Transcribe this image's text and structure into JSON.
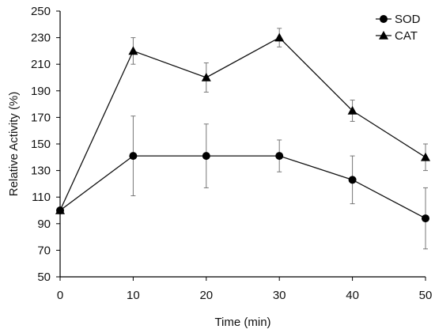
{
  "chart_data": {
    "type": "line",
    "x": [
      0,
      10,
      20,
      30,
      40,
      50
    ],
    "xlabel": "Time (min)",
    "ylabel": "Relative Activity (%)",
    "xlim": [
      0,
      50
    ],
    "ylim": [
      50,
      250
    ],
    "xticks": [
      0,
      10,
      20,
      30,
      40,
      50
    ],
    "yticks": [
      50,
      70,
      90,
      110,
      130,
      150,
      170,
      190,
      210,
      230,
      250
    ],
    "grid": false,
    "legend_position": "top-right",
    "series": [
      {
        "name": "SOD",
        "marker": "circle",
        "values": [
          100,
          141,
          141,
          141,
          123,
          94
        ],
        "errors": [
          0,
          30,
          24,
          12,
          18,
          23
        ]
      },
      {
        "name": "CAT",
        "marker": "triangle",
        "values": [
          100,
          220,
          200,
          230,
          175,
          140
        ],
        "errors": [
          0,
          10,
          11,
          7,
          8,
          10
        ]
      }
    ],
    "colors": {
      "line": "#111111",
      "error_bar": "#777777",
      "axis": "#000000"
    }
  }
}
